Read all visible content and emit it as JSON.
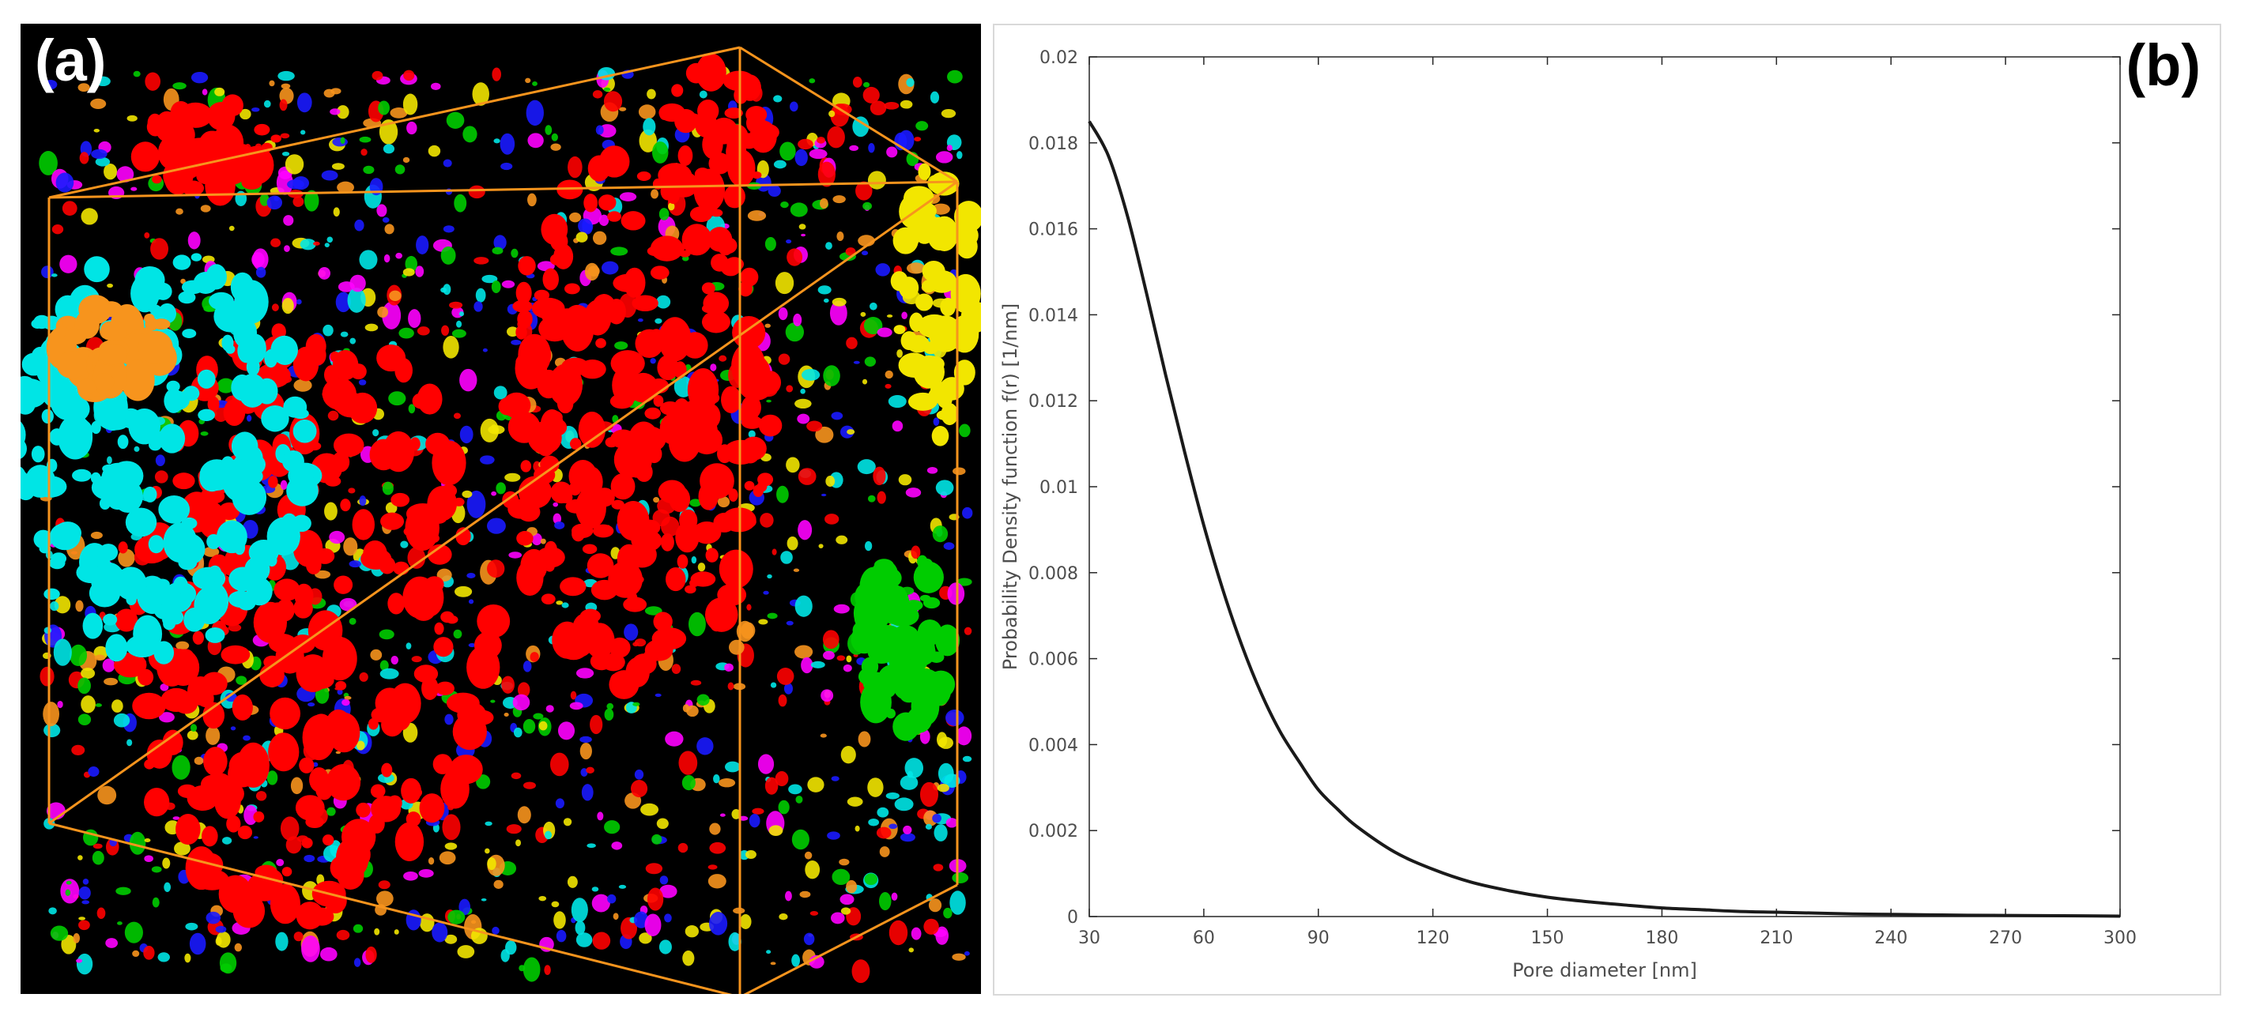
{
  "panel_a": {
    "label": "(a)",
    "box_color": "#f7941d",
    "background": "#000000",
    "pore_colors": [
      "#ff0000",
      "#00e5e5",
      "#f2e600",
      "#f7941d",
      "#00cc00",
      "#ff00ff",
      "#1a1aff"
    ]
  },
  "panel_b": {
    "label": "(b)"
  },
  "chart_data": {
    "type": "line",
    "title": "",
    "xlabel": "Pore diameter [nm]",
    "ylabel": "Probability Density function f(r) [1/nm]",
    "xlim": [
      30,
      300
    ],
    "ylim": [
      0,
      0.02
    ],
    "xticks": [
      30,
      60,
      90,
      120,
      150,
      180,
      210,
      240,
      270,
      300
    ],
    "yticks": [
      0,
      0.002,
      0.004,
      0.006,
      0.008,
      0.01,
      0.012,
      0.014,
      0.016,
      0.018,
      0.02
    ],
    "ytick_labels": [
      "0",
      "0.002",
      "0.004",
      "0.006",
      "0.008",
      "0.01",
      "0.012",
      "0.014",
      "0.016",
      "0.018",
      "0.02"
    ],
    "grid": false,
    "line_color": "#1a1a1a",
    "series": [
      {
        "name": "f(r)",
        "x": [
          30,
          35,
          40,
          45,
          50,
          55,
          60,
          65,
          70,
          75,
          80,
          85,
          90,
          95,
          100,
          110,
          120,
          130,
          140,
          150,
          160,
          170,
          180,
          190,
          200,
          210,
          220,
          230,
          240,
          250,
          260,
          270,
          280,
          290,
          300
        ],
        "y": [
          0.0185,
          0.0177,
          0.0163,
          0.0145,
          0.0126,
          0.0108,
          0.0091,
          0.0076,
          0.0063,
          0.0052,
          0.0043,
          0.0036,
          0.00295,
          0.0025,
          0.0021,
          0.0015,
          0.0011,
          0.0008,
          0.0006,
          0.00045,
          0.00035,
          0.00027,
          0.0002,
          0.00016,
          0.00012,
          0.0001,
          8e-05,
          6e-05,
          5e-05,
          4e-05,
          3e-05,
          2.5e-05,
          2e-05,
          1.5e-05,
          1e-05
        ]
      }
    ]
  }
}
